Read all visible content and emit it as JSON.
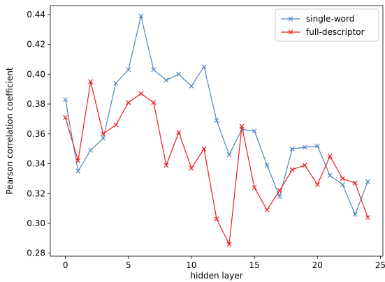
{
  "chart_data": {
    "type": "line",
    "title": "",
    "xlabel": "hidden layer",
    "ylabel": "Pearson correlation coefficient",
    "xlim": [
      -1.2,
      25.2
    ],
    "ylim": [
      0.278,
      0.446
    ],
    "xticks": [
      0,
      5,
      10,
      15,
      20,
      25
    ],
    "xtick_labels": [
      "0",
      "5",
      "10",
      "15",
      "20",
      "25"
    ],
    "yticks": [
      0.28,
      0.3,
      0.32,
      0.34,
      0.36,
      0.38,
      0.4,
      0.42,
      0.44
    ],
    "ytick_labels": [
      "0.28",
      "0.30",
      "0.32",
      "0.34",
      "0.36",
      "0.38",
      "0.40",
      "0.42",
      "0.44"
    ],
    "grid": false,
    "legend_position": "top-right",
    "x": [
      0,
      1,
      2,
      3,
      4,
      5,
      6,
      7,
      8,
      9,
      10,
      11,
      12,
      13,
      14,
      15,
      16,
      17,
      18,
      19,
      20,
      21,
      22,
      23,
      24
    ],
    "series": [
      {
        "name": "single-word",
        "color": "#4f86bb",
        "marker": "x",
        "values": [
          0.383,
          0.335,
          0.349,
          0.357,
          0.394,
          0.403,
          0.439,
          0.403,
          0.396,
          0.4,
          0.392,
          0.405,
          0.369,
          0.346,
          0.363,
          0.362,
          0.339,
          0.318,
          0.35,
          0.351,
          0.352,
          0.332,
          0.326,
          0.306,
          0.328
        ]
      },
      {
        "name": "full-descriptor",
        "color": "#ee1c1c",
        "marker": "x",
        "values": [
          0.371,
          0.342,
          0.395,
          0.36,
          0.366,
          0.381,
          0.387,
          0.381,
          0.339,
          0.361,
          0.337,
          0.35,
          0.303,
          0.286,
          0.365,
          0.324,
          0.309,
          0.322,
          0.336,
          0.339,
          0.326,
          0.345,
          0.33,
          0.327,
          0.304
        ]
      }
    ]
  }
}
